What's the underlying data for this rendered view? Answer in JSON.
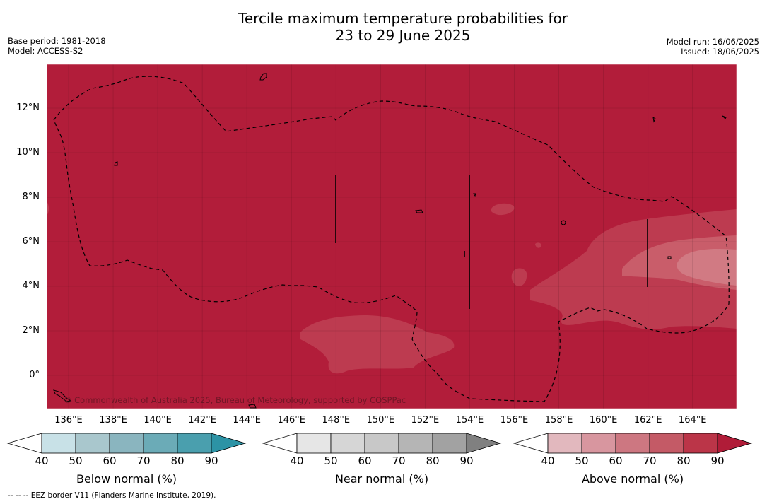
{
  "title_line1": "Tercile maximum temperature probabilities for",
  "title_line2": "23 to 29 June 2025",
  "base_period": "Base period: 1981-2018",
  "model": "Model: ACCESS-S2",
  "model_run": "Model run: 16/06/2025",
  "issued": "Issued: 18/06/2025",
  "copyright": "© Commonwealth of Australia 2025, Bureau of Meteorology, supported by COSPPac",
  "footnote": "--  --  -- EEZ border V11 (Flanders Marine Institute, 2019).",
  "lat_ticks": [
    "12°N",
    "10°N",
    "8°N",
    "6°N",
    "4°N",
    "2°N",
    "0°"
  ],
  "lon_ticks": [
    "136°E",
    "138°E",
    "140°E",
    "142°E",
    "144°E",
    "146°E",
    "148°E",
    "150°E",
    "152°E",
    "154°E",
    "156°E",
    "158°E",
    "160°E",
    "162°E",
    "164°E"
  ],
  "colorbars": [
    {
      "label": "Below normal (%)",
      "ticks": [
        "40",
        "50",
        "60",
        "70",
        "80",
        "90"
      ],
      "colors": [
        "#c8e1e7",
        "#a9c7cd",
        "#8ab5bf",
        "#6babb7",
        "#4a9fae",
        "#2c93a5"
      ]
    },
    {
      "label": "Near normal (%)",
      "ticks": [
        "40",
        "50",
        "60",
        "70",
        "80",
        "90"
      ],
      "colors": [
        "#e6e6e6",
        "#d6d6d6",
        "#c8c8c8",
        "#b5b5b5",
        "#a2a2a2",
        "#808080"
      ]
    },
    {
      "label": "Above normal (%)",
      "ticks": [
        "40",
        "50",
        "60",
        "70",
        "80",
        "90"
      ],
      "colors": [
        "#e2b8be",
        "#d8969f",
        "#cd7781",
        "#c45a66",
        "#bb3548",
        "#b01c38"
      ]
    }
  ],
  "map_colors": {
    "background": "#b21d3a",
    "level_70_80": "#bd3b50",
    "level_60_70": "#c95d6a",
    "level_50_60": "#d17a83"
  }
}
